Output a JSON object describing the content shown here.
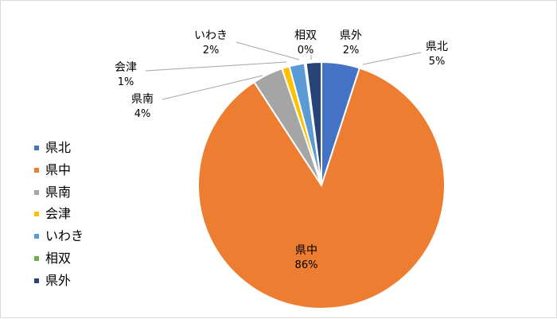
{
  "chart_data": {
    "type": "pie",
    "categories": [
      "県北",
      "県中",
      "県南",
      "会津",
      "いわき",
      "相双",
      "県外"
    ],
    "values": [
      5,
      86,
      4,
      1,
      2,
      0,
      2
    ],
    "data_labels": [
      "5%",
      "86%",
      "4%",
      "1%",
      "2%",
      "0%",
      "2%"
    ],
    "colors": [
      "#4472C4",
      "#ED7D31",
      "#A5A5A5",
      "#FFC000",
      "#5B9BD5",
      "#70AD47",
      "#264478"
    ],
    "start_angle_deg": 90,
    "direction": "clockwise",
    "legend": "left",
    "title": ""
  }
}
